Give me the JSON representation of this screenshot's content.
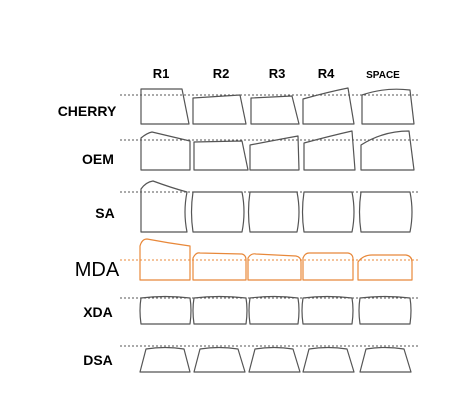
{
  "columns": [
    "R1",
    "R2",
    "R3",
    "R4",
    "SPACE"
  ],
  "profiles": [
    {
      "name": "CHERRY",
      "highlight": false
    },
    {
      "name": "OEM",
      "highlight": false
    },
    {
      "name": "SA",
      "highlight": false
    },
    {
      "name": "MDA",
      "highlight": true
    },
    {
      "name": "XDA",
      "highlight": false
    },
    {
      "name": "DSA",
      "highlight": false
    }
  ],
  "colors": {
    "text": "#000000",
    "stroke": "#555555",
    "guide": "#555555",
    "highlight": "#e8883a"
  }
}
